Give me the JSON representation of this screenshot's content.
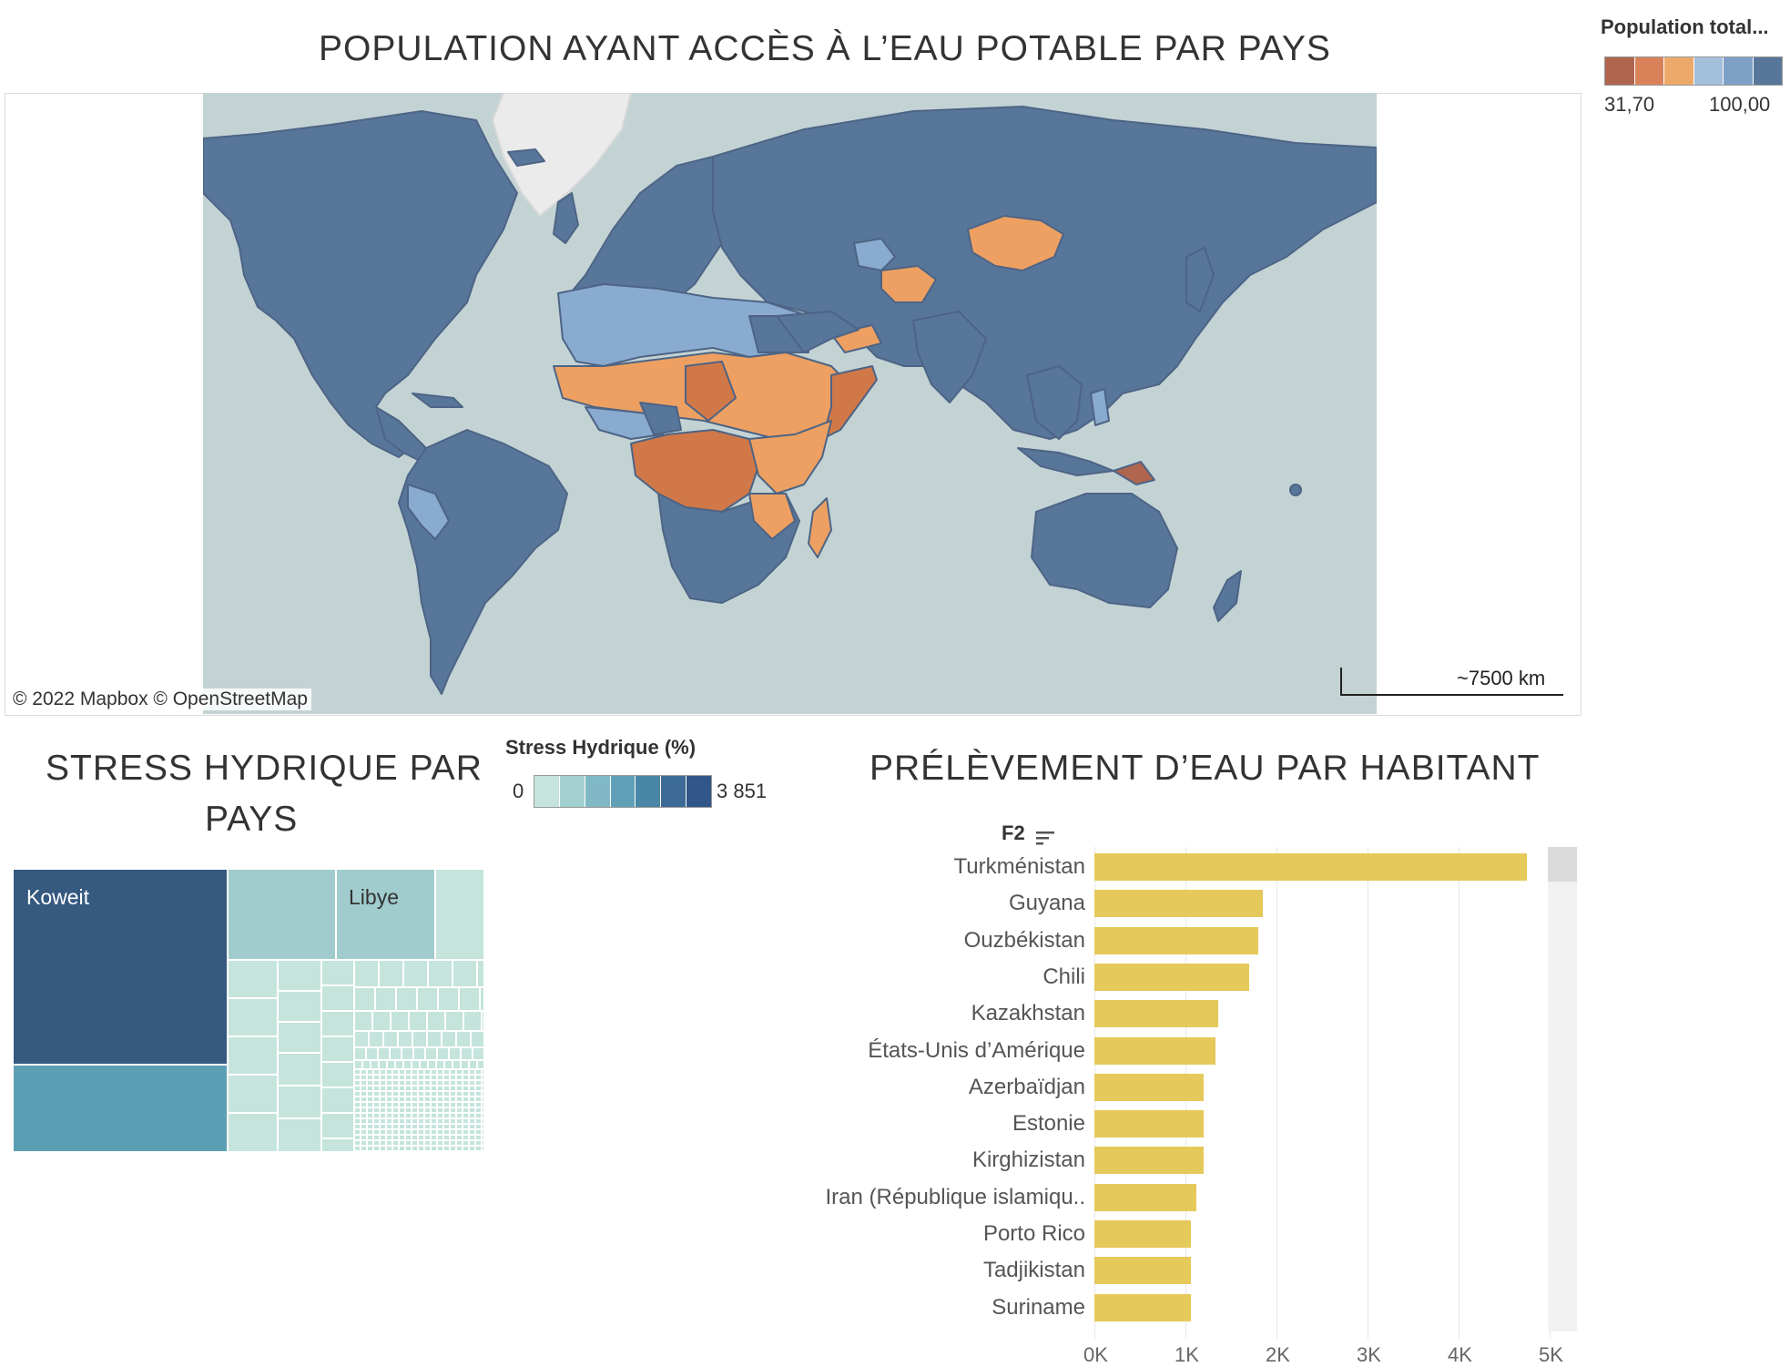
{
  "map": {
    "title": "POPULATION AYANT ACCÈS À L’EAU POTABLE PAR PAYS",
    "attribution": "© 2022 Mapbox  © OpenStreetMap",
    "scale_label": "~7500 km",
    "colors": {
      "ocean": "#c3d3d4",
      "high": "#58769a",
      "mid": "#8aabd0",
      "low": "#eda062",
      "lowest": "#d17848",
      "min": "#b0654f",
      "land_unknown": "#ebebeb"
    }
  },
  "population_legend": {
    "title": "Population total...",
    "min_label": "31,70",
    "max_label": "100,00",
    "colors": [
      "#b0654f",
      "#d9825a",
      "#eda96a",
      "#a4bfdc",
      "#7e9fc6",
      "#58769a"
    ]
  },
  "stress_legend": {
    "title": "Stress Hydrique (%)",
    "min_label": "0",
    "max_label": "3 851",
    "colors": [
      "#c4e4dc",
      "#a2d0cf",
      "#80b9c5",
      "#5fa0b7",
      "#4a86a6",
      "#3b6b96",
      "#31568a"
    ]
  },
  "treemap": {
    "title_line1": "STRESS HYDRIQUE PAR",
    "title_line2": "PAYS",
    "labels": {
      "kuwait": "Koweit",
      "libya": "Libye"
    },
    "colors": {
      "kuwait": "#35597f",
      "second": "#5c9fb4",
      "third": "#a1cccd",
      "light": "#c4e4dc"
    }
  },
  "bar_chart": {
    "title": "PRÉLÈVEMENT D’EAU PAR HABITANT",
    "sort_field": "F2",
    "bar_color": "#e6c95b"
  },
  "chart_data": {
    "type": "bar",
    "orientation": "horizontal",
    "title": "PRÉLÈVEMENT D’EAU PAR HABITANT",
    "categories": [
      "Turkménistan",
      "Guyana",
      "Ouzbékistan",
      "Chili",
      "Kazakhstan",
      "États-Unis d’Amérique",
      "Azerbaïdjan",
      "Estonie",
      "Kirghizistan",
      "Iran (République islamiqu..",
      "Porto Rico",
      "Tadjikistan",
      "Suriname"
    ],
    "values": [
      4750,
      1850,
      1800,
      1700,
      1360,
      1330,
      1200,
      1200,
      1200,
      1120,
      1060,
      1060,
      1060
    ],
    "xlabel": "",
    "ylabel": "F2",
    "xlim": [
      0,
      5000
    ],
    "x_ticks": [
      "0K",
      "1K",
      "2K",
      "3K",
      "4K",
      "5K"
    ]
  }
}
